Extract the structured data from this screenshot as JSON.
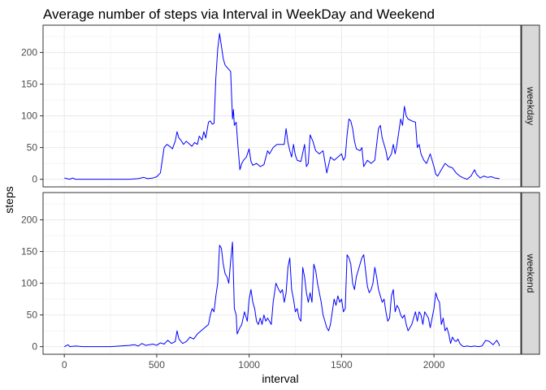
{
  "chart_data": {
    "type": "line",
    "title": "Average number of steps via Interval in WeekDay and Weekend",
    "xlabel": "interval",
    "ylabel": "steps",
    "xlim": [
      -115,
      2470
    ],
    "ylim": [
      -12,
      243
    ],
    "x_ticks": [
      0,
      500,
      1000,
      1500,
      2000
    ],
    "y_ticks": [
      0,
      50,
      100,
      150,
      200
    ],
    "grid": true,
    "line_color": "#0000ff",
    "facets": [
      {
        "name": "weekday",
        "points": [
          [
            0,
            2
          ],
          [
            15,
            1
          ],
          [
            30,
            0
          ],
          [
            45,
            2
          ],
          [
            60,
            0
          ],
          [
            100,
            0
          ],
          [
            150,
            0
          ],
          [
            200,
            0
          ],
          [
            250,
            0
          ],
          [
            300,
            0
          ],
          [
            350,
            0
          ],
          [
            400,
            1
          ],
          [
            430,
            3
          ],
          [
            450,
            1
          ],
          [
            480,
            2
          ],
          [
            500,
            4
          ],
          [
            520,
            10
          ],
          [
            540,
            50
          ],
          [
            555,
            55
          ],
          [
            570,
            52
          ],
          [
            585,
            48
          ],
          [
            600,
            60
          ],
          [
            610,
            75
          ],
          [
            620,
            65
          ],
          [
            630,
            62
          ],
          [
            645,
            55
          ],
          [
            660,
            60
          ],
          [
            675,
            56
          ],
          [
            690,
            52
          ],
          [
            705,
            58
          ],
          [
            720,
            55
          ],
          [
            730,
            68
          ],
          [
            745,
            62
          ],
          [
            755,
            75
          ],
          [
            765,
            65
          ],
          [
            780,
            90
          ],
          [
            790,
            92
          ],
          [
            800,
            87
          ],
          [
            810,
            88
          ],
          [
            820,
            160
          ],
          [
            830,
            205
          ],
          [
            840,
            230
          ],
          [
            850,
            210
          ],
          [
            860,
            190
          ],
          [
            870,
            180
          ],
          [
            885,
            175
          ],
          [
            900,
            170
          ],
          [
            910,
            95
          ],
          [
            915,
            110
          ],
          [
            920,
            85
          ],
          [
            930,
            90
          ],
          [
            940,
            50
          ],
          [
            950,
            15
          ],
          [
            960,
            25
          ],
          [
            970,
            30
          ],
          [
            985,
            35
          ],
          [
            1000,
            48
          ],
          [
            1010,
            28
          ],
          [
            1020,
            22
          ],
          [
            1040,
            25
          ],
          [
            1060,
            20
          ],
          [
            1080,
            23
          ],
          [
            1100,
            45
          ],
          [
            1110,
            40
          ],
          [
            1130,
            50
          ],
          [
            1150,
            55
          ],
          [
            1170,
            55
          ],
          [
            1190,
            55
          ],
          [
            1200,
            80
          ],
          [
            1210,
            58
          ],
          [
            1220,
            45
          ],
          [
            1230,
            35
          ],
          [
            1240,
            55
          ],
          [
            1250,
            38
          ],
          [
            1260,
            30
          ],
          [
            1280,
            28
          ],
          [
            1300,
            55
          ],
          [
            1310,
            20
          ],
          [
            1320,
            25
          ],
          [
            1330,
            70
          ],
          [
            1345,
            60
          ],
          [
            1360,
            45
          ],
          [
            1380,
            40
          ],
          [
            1400,
            45
          ],
          [
            1420,
            10
          ],
          [
            1440,
            35
          ],
          [
            1460,
            30
          ],
          [
            1480,
            35
          ],
          [
            1500,
            40
          ],
          [
            1510,
            30
          ],
          [
            1520,
            35
          ],
          [
            1530,
            70
          ],
          [
            1540,
            95
          ],
          [
            1550,
            92
          ],
          [
            1560,
            80
          ],
          [
            1570,
            60
          ],
          [
            1580,
            48
          ],
          [
            1600,
            45
          ],
          [
            1610,
            50
          ],
          [
            1620,
            20
          ],
          [
            1640,
            30
          ],
          [
            1660,
            25
          ],
          [
            1680,
            30
          ],
          [
            1700,
            80
          ],
          [
            1710,
            85
          ],
          [
            1720,
            65
          ],
          [
            1740,
            45
          ],
          [
            1750,
            30
          ],
          [
            1760,
            35
          ],
          [
            1770,
            40
          ],
          [
            1780,
            55
          ],
          [
            1790,
            40
          ],
          [
            1800,
            55
          ],
          [
            1810,
            75
          ],
          [
            1820,
            95
          ],
          [
            1830,
            85
          ],
          [
            1840,
            115
          ],
          [
            1850,
            100
          ],
          [
            1860,
            95
          ],
          [
            1880,
            92
          ],
          [
            1900,
            90
          ],
          [
            1910,
            50
          ],
          [
            1920,
            55
          ],
          [
            1930,
            40
          ],
          [
            1945,
            30
          ],
          [
            1960,
            25
          ],
          [
            1980,
            40
          ],
          [
            2000,
            20
          ],
          [
            2010,
            8
          ],
          [
            2020,
            5
          ],
          [
            2040,
            15
          ],
          [
            2060,
            25
          ],
          [
            2080,
            20
          ],
          [
            2100,
            18
          ],
          [
            2120,
            10
          ],
          [
            2140,
            5
          ],
          [
            2160,
            2
          ],
          [
            2180,
            0
          ],
          [
            2200,
            5
          ],
          [
            2210,
            10
          ],
          [
            2220,
            15
          ],
          [
            2230,
            8
          ],
          [
            2250,
            2
          ],
          [
            2270,
            5
          ],
          [
            2290,
            3
          ],
          [
            2310,
            4
          ],
          [
            2330,
            2
          ],
          [
            2355,
            1
          ]
        ]
      },
      {
        "name": "weekend",
        "points": [
          [
            0,
            0
          ],
          [
            20,
            3
          ],
          [
            30,
            0
          ],
          [
            60,
            1
          ],
          [
            100,
            0
          ],
          [
            150,
            0
          ],
          [
            200,
            0
          ],
          [
            250,
            0
          ],
          [
            300,
            1
          ],
          [
            350,
            2
          ],
          [
            380,
            3
          ],
          [
            400,
            1
          ],
          [
            420,
            5
          ],
          [
            440,
            2
          ],
          [
            460,
            3
          ],
          [
            480,
            4
          ],
          [
            500,
            2
          ],
          [
            520,
            6
          ],
          [
            540,
            4
          ],
          [
            560,
            10
          ],
          [
            580,
            5
          ],
          [
            600,
            8
          ],
          [
            610,
            25
          ],
          [
            620,
            12
          ],
          [
            640,
            5
          ],
          [
            660,
            8
          ],
          [
            680,
            15
          ],
          [
            700,
            12
          ],
          [
            720,
            20
          ],
          [
            740,
            25
          ],
          [
            760,
            30
          ],
          [
            780,
            35
          ],
          [
            790,
            50
          ],
          [
            800,
            60
          ],
          [
            810,
            55
          ],
          [
            820,
            80
          ],
          [
            830,
            100
          ],
          [
            840,
            160
          ],
          [
            850,
            155
          ],
          [
            860,
            130
          ],
          [
            870,
            115
          ],
          [
            880,
            110
          ],
          [
            890,
            100
          ],
          [
            900,
            135
          ],
          [
            910,
            165
          ],
          [
            920,
            60
          ],
          [
            930,
            50
          ],
          [
            935,
            20
          ],
          [
            950,
            30
          ],
          [
            960,
            35
          ],
          [
            975,
            55
          ],
          [
            990,
            40
          ],
          [
            1000,
            75
          ],
          [
            1010,
            90
          ],
          [
            1020,
            70
          ],
          [
            1030,
            60
          ],
          [
            1040,
            40
          ],
          [
            1050,
            35
          ],
          [
            1060,
            45
          ],
          [
            1070,
            35
          ],
          [
            1080,
            50
          ],
          [
            1090,
            40
          ],
          [
            1100,
            45
          ],
          [
            1110,
            40
          ],
          [
            1120,
            35
          ],
          [
            1130,
            70
          ],
          [
            1145,
            100
          ],
          [
            1160,
            90
          ],
          [
            1170,
            85
          ],
          [
            1180,
            90
          ],
          [
            1190,
            70
          ],
          [
            1200,
            85
          ],
          [
            1210,
            125
          ],
          [
            1220,
            140
          ],
          [
            1230,
            90
          ],
          [
            1240,
            75
          ],
          [
            1250,
            55
          ],
          [
            1260,
            60
          ],
          [
            1270,
            45
          ],
          [
            1280,
            40
          ],
          [
            1290,
            125
          ],
          [
            1300,
            110
          ],
          [
            1310,
            85
          ],
          [
            1320,
            70
          ],
          [
            1330,
            85
          ],
          [
            1340,
            70
          ],
          [
            1350,
            130
          ],
          [
            1360,
            120
          ],
          [
            1370,
            100
          ],
          [
            1380,
            85
          ],
          [
            1390,
            70
          ],
          [
            1400,
            50
          ],
          [
            1410,
            40
          ],
          [
            1420,
            30
          ],
          [
            1430,
            25
          ],
          [
            1440,
            35
          ],
          [
            1450,
            55
          ],
          [
            1460,
            75
          ],
          [
            1470,
            65
          ],
          [
            1480,
            80
          ],
          [
            1490,
            70
          ],
          [
            1500,
            75
          ],
          [
            1510,
            55
          ],
          [
            1520,
            60
          ],
          [
            1530,
            145
          ],
          [
            1540,
            140
          ],
          [
            1550,
            130
          ],
          [
            1560,
            100
          ],
          [
            1570,
            90
          ],
          [
            1580,
            110
          ],
          [
            1590,
            120
          ],
          [
            1600,
            130
          ],
          [
            1610,
            140
          ],
          [
            1620,
            145
          ],
          [
            1630,
            120
          ],
          [
            1640,
            95
          ],
          [
            1650,
            85
          ],
          [
            1660,
            90
          ],
          [
            1670,
            100
          ],
          [
            1680,
            125
          ],
          [
            1690,
            110
          ],
          [
            1700,
            90
          ],
          [
            1710,
            80
          ],
          [
            1720,
            70
          ],
          [
            1730,
            75
          ],
          [
            1740,
            55
          ],
          [
            1750,
            40
          ],
          [
            1760,
            45
          ],
          [
            1770,
            80
          ],
          [
            1780,
            90
          ],
          [
            1790,
            55
          ],
          [
            1800,
            65
          ],
          [
            1810,
            60
          ],
          [
            1820,
            50
          ],
          [
            1830,
            45
          ],
          [
            1840,
            50
          ],
          [
            1850,
            35
          ],
          [
            1860,
            25
          ],
          [
            1870,
            30
          ],
          [
            1880,
            35
          ],
          [
            1890,
            45
          ],
          [
            1900,
            55
          ],
          [
            1910,
            40
          ],
          [
            1920,
            55
          ],
          [
            1930,
            50
          ],
          [
            1940,
            35
          ],
          [
            1950,
            55
          ],
          [
            1960,
            50
          ],
          [
            1970,
            45
          ],
          [
            1980,
            30
          ],
          [
            1990,
            45
          ],
          [
            2000,
            60
          ],
          [
            2010,
            85
          ],
          [
            2020,
            75
          ],
          [
            2030,
            70
          ],
          [
            2040,
            35
          ],
          [
            2050,
            45
          ],
          [
            2060,
            25
          ],
          [
            2070,
            30
          ],
          [
            2080,
            20
          ],
          [
            2090,
            5
          ],
          [
            2100,
            15
          ],
          [
            2110,
            10
          ],
          [
            2120,
            8
          ],
          [
            2130,
            12
          ],
          [
            2140,
            5
          ],
          [
            2150,
            2
          ],
          [
            2160,
            0
          ],
          [
            2180,
            1
          ],
          [
            2200,
            0
          ],
          [
            2220,
            1
          ],
          [
            2240,
            0
          ],
          [
            2260,
            1
          ],
          [
            2280,
            10
          ],
          [
            2300,
            8
          ],
          [
            2320,
            3
          ],
          [
            2340,
            10
          ],
          [
            2350,
            5
          ],
          [
            2355,
            1
          ]
        ]
      }
    ]
  }
}
